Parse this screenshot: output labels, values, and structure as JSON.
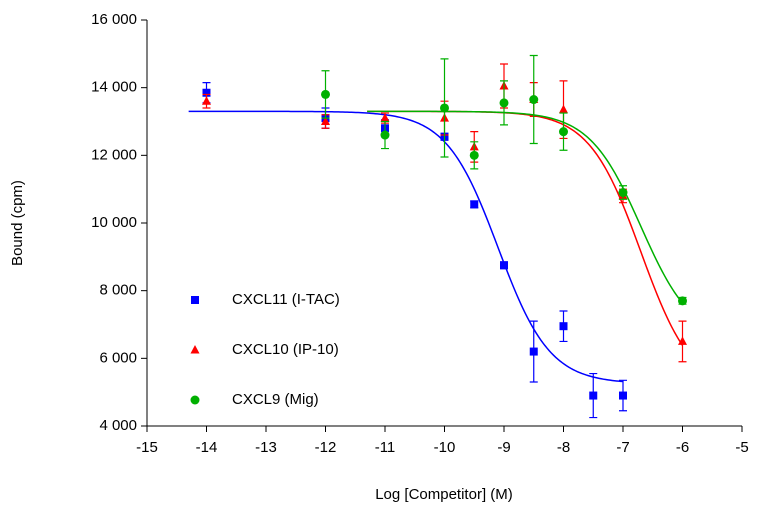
{
  "chart_data": {
    "type": "scatter",
    "xlabel": "Log [Competitor] (M)",
    "ylabel": "Bound (cpm)",
    "xlim": [
      -15,
      -5
    ],
    "xticks": [
      -15,
      -14,
      -13,
      -12,
      -11,
      -10,
      -9,
      -8,
      -7,
      -6,
      -5
    ],
    "ylim": [
      4000,
      16000
    ],
    "yticks": [
      {
        "value": 4000,
        "label": "4 000"
      },
      {
        "value": 6000,
        "label": "6 000"
      },
      {
        "value": 8000,
        "label": "8 000"
      },
      {
        "value": 10000,
        "label": "10 000"
      },
      {
        "value": 12000,
        "label": "12 000"
      },
      {
        "value": 14000,
        "label": "14 000"
      },
      {
        "value": 16000,
        "label": "16 000"
      }
    ],
    "legend": "lower left",
    "series": [
      {
        "name": "CXCL11 (I-TAC)",
        "color": "#0000ff",
        "marker": "square",
        "x": [
          -14,
          -12,
          -11,
          -10,
          -9.5,
          -9,
          -8.5,
          -8,
          -7.5,
          -7
        ],
        "values": [
          13850,
          13100,
          12800,
          12550,
          10550,
          8750,
          6200,
          6950,
          4900,
          4900
        ],
        "errors": [
          300,
          300,
          250,
          100,
          100,
          100,
          900,
          450,
          650,
          450
        ],
        "fit": {
          "top": 13300,
          "bottom": 5250,
          "log_ec50": -9.1,
          "hill": 1,
          "xrange": [
            -14.3,
            -7
          ]
        }
      },
      {
        "name": "CXCL10 (IP-10)",
        "color": "#ff0000",
        "marker": "triangle",
        "x": [
          -14,
          -12,
          -11,
          -10,
          -9.5,
          -9,
          -8.5,
          -8,
          -7,
          -6
        ],
        "values": [
          13600,
          13000,
          13100,
          13100,
          12250,
          14050,
          13650,
          13350,
          10800,
          6500
        ],
        "errors": [
          200,
          200,
          150,
          500,
          450,
          650,
          500,
          850,
          200,
          600
        ],
        "fit": {
          "top": 13300,
          "bottom": 5000,
          "log_ec50": -6.7,
          "hill": 1,
          "xrange": [
            -11.3,
            -6
          ]
        }
      },
      {
        "name": "CXCL9 (Mig)",
        "color": "#00b000",
        "marker": "circle",
        "x": [
          -12,
          -11,
          -10,
          -9.5,
          -9,
          -8.5,
          -8,
          -7,
          -6
        ],
        "values": [
          13800,
          12600,
          13400,
          12000,
          13550,
          13650,
          12700,
          10900,
          7700
        ],
        "errors": [
          700,
          400,
          1450,
          400,
          650,
          1300,
          550,
          200,
          100
        ],
        "fit": {
          "top": 13300,
          "bottom": 6500,
          "log_ec50": -6.7,
          "hill": 1,
          "xrange": [
            -11.3,
            -6
          ]
        }
      }
    ]
  }
}
